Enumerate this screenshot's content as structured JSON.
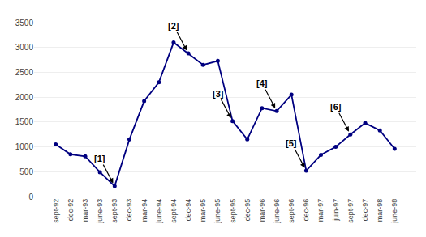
{
  "chart_data": {
    "type": "line",
    "categories": [
      "sept-92",
      "dec-92",
      "mar-93",
      "june-93",
      "sept-93",
      "dec-93",
      "mar-94",
      "june-94",
      "sept-94",
      "dec-94",
      "mar-95",
      "june-95",
      "sept-95",
      "dec-95",
      "mar-96",
      "june-96",
      "sept-96",
      "dec-96",
      "mar-97",
      "juin-97",
      "sept-97",
      "dec-97",
      "mar-98",
      "june-98"
    ],
    "values": [
      1050,
      850,
      810,
      490,
      210,
      1150,
      1920,
      2300,
      3100,
      2880,
      2650,
      2730,
      1520,
      1150,
      1780,
      1720,
      2050,
      520,
      840,
      1000,
      1250,
      1480,
      1330,
      960
    ],
    "color": "#000080",
    "marker": "circle",
    "ylim": [
      0,
      3500
    ],
    "yticks": [
      0,
      500,
      1000,
      1500,
      2000,
      2500,
      3000,
      3500
    ],
    "grid": true,
    "annotations": [
      {
        "text": "[1]",
        "x": "sept-93"
      },
      {
        "text": "[2]",
        "x": "dec-94"
      },
      {
        "text": "[3]",
        "x": "sept-95"
      },
      {
        "text": "[4]",
        "x": "june-96"
      },
      {
        "text": "[5]",
        "x": "dec-96"
      },
      {
        "text": "[6]",
        "x": "sept-97"
      }
    ]
  }
}
